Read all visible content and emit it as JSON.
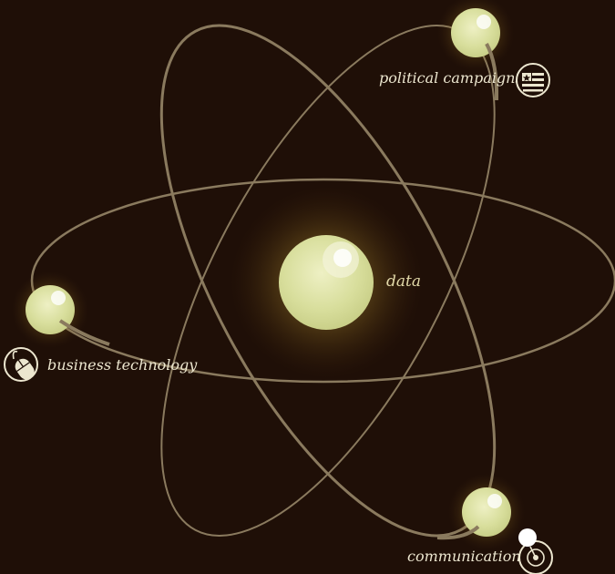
{
  "center": {
    "label": "data"
  },
  "nodes": [
    {
      "id": "political",
      "label": "political campaigns",
      "icon": "flag-icon"
    },
    {
      "id": "business",
      "label": "business technology",
      "icon": "mouse-icon"
    },
    {
      "id": "communication",
      "label": "communication",
      "icon": "target-icon"
    }
  ],
  "colors": {
    "background": "#1f0f07",
    "orbit": "#8a7a5e",
    "orb": "#d9df9f",
    "glow": "#c9a94a",
    "label": "#ece6cf"
  }
}
